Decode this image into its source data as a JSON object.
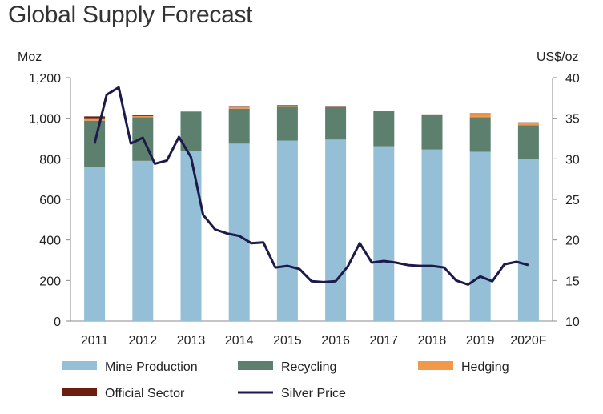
{
  "chart_data": {
    "type": "bar",
    "title": "Global Supply Forecast",
    "stacked": true,
    "categories": [
      "2011",
      "2012",
      "2013",
      "2014",
      "2015",
      "2016",
      "2017",
      "2018",
      "2019",
      "2020F"
    ],
    "left_unit": "Moz",
    "right_unit": "US$/oz",
    "ylim": [
      0,
      1200
    ],
    "y_ticks": [
      0,
      200,
      400,
      600,
      800,
      1000,
      1200
    ],
    "ylim_right": [
      10,
      40
    ],
    "y_ticks_right": [
      10,
      15,
      20,
      25,
      30,
      35,
      40
    ],
    "grid": false,
    "legend_position": "bottom",
    "series": [
      {
        "name": "Mine Production",
        "color": "#94bfd6",
        "values": [
          760,
          790,
          840,
          875,
          890,
          895,
          862,
          846,
          835,
          797
        ]
      },
      {
        "name": "Recycling",
        "color": "#5c7f6e",
        "values": [
          228,
          215,
          192,
          172,
          170,
          162,
          170,
          170,
          170,
          168
        ]
      },
      {
        "name": "Hedging",
        "color": "#f0994a",
        "values": [
          12,
          6,
          3,
          12,
          4,
          2,
          2,
          2,
          18,
          14
        ]
      },
      {
        "name": "Official Sector",
        "color": "#6b1e10",
        "values": [
          9,
          4,
          0,
          1,
          1,
          1,
          1,
          1,
          1,
          1
        ]
      }
    ],
    "line_series": {
      "name": "Silver Price",
      "color": "#1c1a4a",
      "axis": "right",
      "x": [
        0.0,
        0.25,
        0.5,
        0.75,
        1.0,
        1.25,
        1.5,
        1.75,
        2.0,
        2.25,
        2.5,
        2.75,
        3.0,
        3.25,
        3.5,
        3.75,
        4.0,
        4.25,
        4.5,
        4.75,
        5.0,
        5.25,
        5.5,
        5.75,
        6.0,
        6.25,
        6.5,
        6.75,
        7.0,
        7.25,
        7.5,
        7.75,
        8.0,
        8.25,
        8.5,
        8.75,
        9.0
      ],
      "values": [
        31.9,
        37.9,
        38.8,
        31.9,
        32.6,
        29.4,
        29.8,
        32.7,
        30.2,
        23.1,
        21.3,
        20.8,
        20.5,
        19.6,
        19.7,
        16.6,
        16.8,
        16.4,
        14.9,
        14.8,
        14.9,
        16.7,
        19.6,
        17.2,
        17.4,
        17.2,
        16.9,
        16.8,
        16.8,
        16.6,
        15.0,
        14.5,
        15.5,
        14.9,
        17.0,
        17.3,
        16.9
      ]
    }
  }
}
